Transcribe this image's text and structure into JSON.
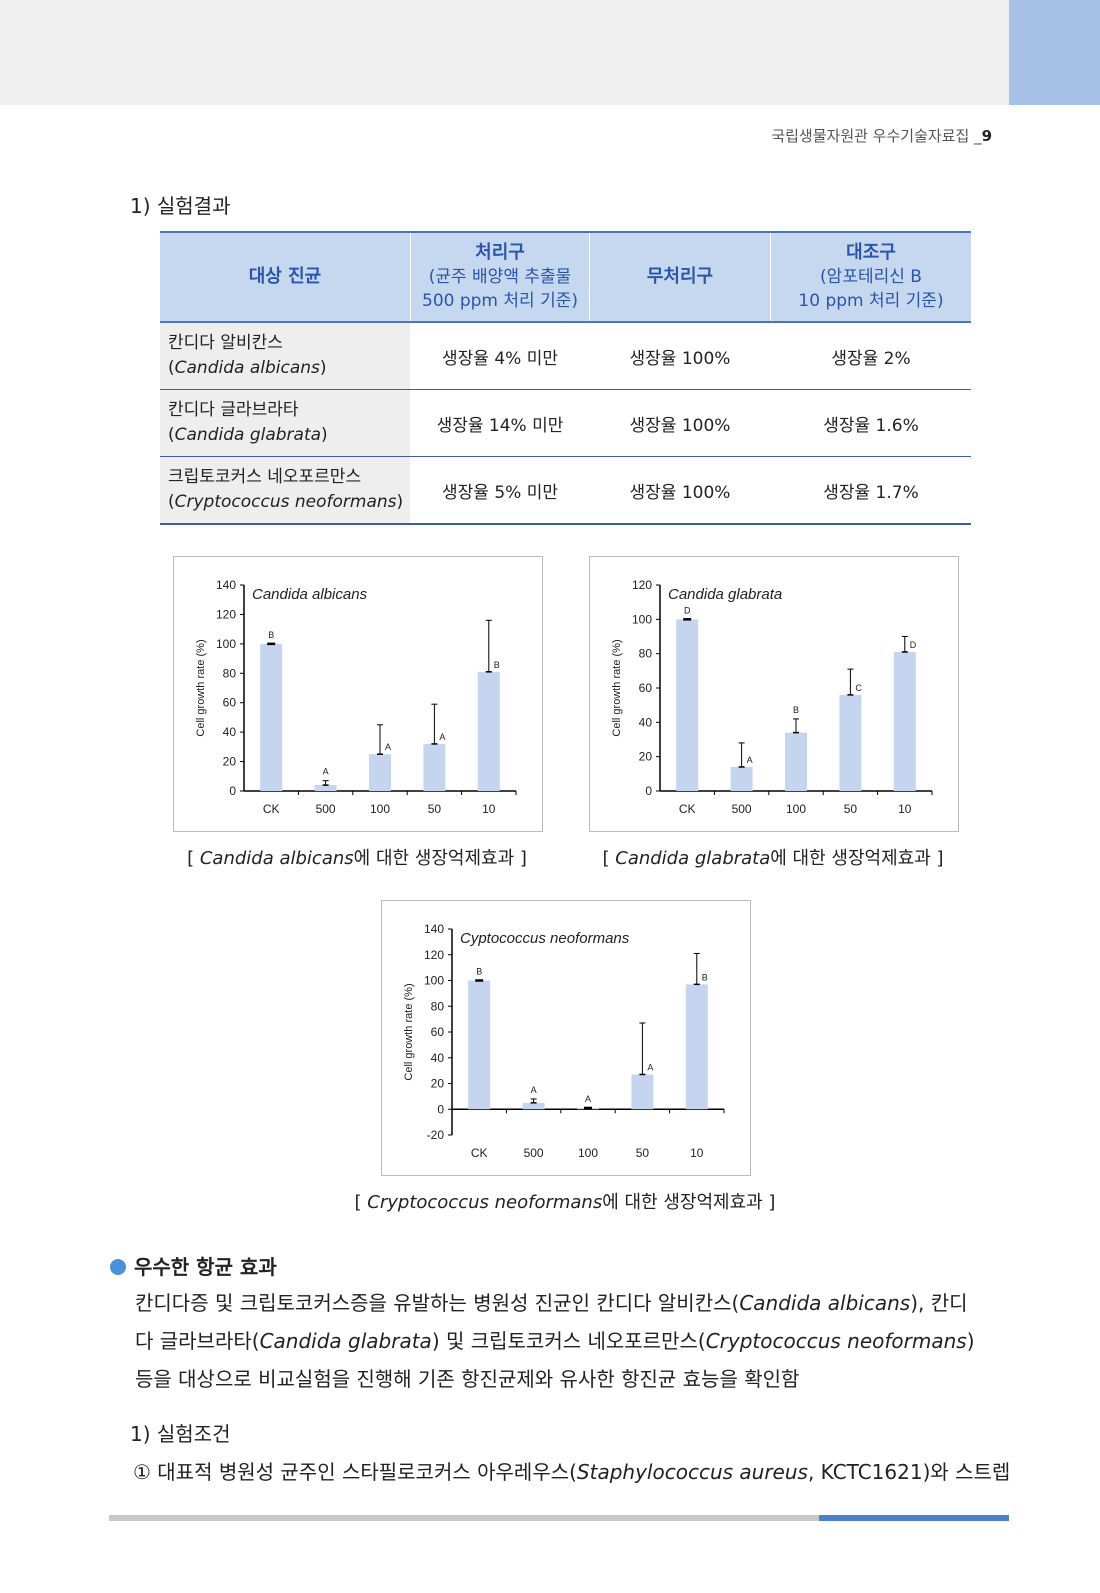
{
  "header": {
    "book_title": "국립생물자원관 우수기술자료집 _",
    "page_number": "9"
  },
  "section1_title": "1) 실험결과",
  "table": {
    "headers": [
      {
        "main": "대상 진균",
        "sub": [
          "",
          ""
        ]
      },
      {
        "main": "처리구",
        "sub": [
          "(균주 배양액 추출물",
          "500 ppm 처리 기준)"
        ]
      },
      {
        "main": "무처리구",
        "sub": [
          "",
          ""
        ]
      },
      {
        "main": "대조구",
        "sub": [
          "(암포테리신 B",
          "10 ppm 처리 기준)"
        ]
      }
    ],
    "rows": [
      {
        "name": "칸디다 알비칸스",
        "sci": "Candida albicans",
        "treated": "생장율 4% 미만",
        "untreated": "생장율 100%",
        "control": "생장율 2%"
      },
      {
        "name": "칸디다 글라브라타",
        "sci": "Candida glabrata",
        "treated": "생장율 14% 미만",
        "untreated": "생장율 100%",
        "control": "생장율 1.6%"
      },
      {
        "name": "크립토코커스 네오포르만스",
        "sci": "Cryptococcus neoformans",
        "treated": "생장율 5% 미만",
        "untreated": "생장율 100%",
        "control": "생장율 1.7%"
      }
    ]
  },
  "chart_data": [
    {
      "type": "bar",
      "title": "Candida albicans",
      "ylabel": "Cell growth rate (%)",
      "categories": [
        "CK",
        "500",
        "100",
        "50",
        "10"
      ],
      "values": [
        100,
        4,
        25,
        32,
        81
      ],
      "error_upper": [
        0,
        3,
        20,
        27,
        35
      ],
      "letters": [
        "B",
        "A",
        "A",
        "A",
        "B"
      ],
      "yticks": [
        0,
        20,
        40,
        60,
        80,
        100,
        120,
        140
      ],
      "ylim": [
        0,
        140
      ]
    },
    {
      "type": "bar",
      "title": "Candida glabrata",
      "ylabel": "Cell growth rate (%)",
      "categories": [
        "CK",
        "500",
        "100",
        "50",
        "10"
      ],
      "values": [
        100,
        14,
        34,
        56,
        81
      ],
      "error_upper": [
        0,
        14,
        8,
        15,
        9
      ],
      "letters": [
        "D",
        "A",
        "B",
        "C",
        "D"
      ],
      "yticks": [
        0,
        20,
        40,
        60,
        80,
        100,
        120
      ],
      "ylim": [
        0,
        120
      ]
    },
    {
      "type": "bar",
      "title": "Cyptococcus neoformans",
      "ylabel": "Cell growth rate (%)",
      "categories": [
        "CK",
        "500",
        "100",
        "50",
        "10"
      ],
      "values": [
        100,
        5,
        1,
        27,
        97
      ],
      "error_upper": [
        0,
        3,
        0,
        40,
        24
      ],
      "letters": [
        "B",
        "A",
        "A",
        "A",
        "B"
      ],
      "yticks": [
        -20,
        0,
        20,
        40,
        60,
        80,
        100,
        120,
        140
      ],
      "ylim": [
        -20,
        140
      ]
    }
  ],
  "captions": [
    {
      "pre": "[ ",
      "italic": "Candida albicans",
      "post": "에 대한 생장억제효과 ]"
    },
    {
      "pre": "[ ",
      "italic": "Candida glabrata",
      "post": "에 대한 생장억제효과 ]"
    },
    {
      "pre": "[ ",
      "italic": "Cryptococcus neoformans",
      "post": "에 대한 생장억제효과 ]"
    }
  ],
  "bullet_title": "우수한 항균 효과",
  "paragraph": {
    "p1": "칸디다증 및 크립토코커스증을 유발하는 병원성 진균인 칸디다 알비칸스(",
    "i1": "Candida albicans",
    "p2": "), 칸디다 글라브라타(",
    "i2": "Candida glabrata",
    "p3": ") 및 크립토코커스 네오포르만스(",
    "i3": "Cryptococcus neoformans",
    "p4": ") 등을 대상으로 비교실험을 진행해 기존 항진균제와 유사한 항진균 효능을 확인함"
  },
  "section2_title": "1) 실험조건",
  "condition": {
    "pre": "① 대표적 병원성 균주인 스타필로코커스 아우레우스(",
    "italic": "Staphylococcus aureus",
    "post": ", KCTC1621)와 스트렙"
  },
  "colors": {
    "bar": "#c5d5ef",
    "header_bg": "#c6d7f0",
    "header_text": "#2a55a8",
    "accent": "#a8c1e6",
    "bullet": "#4a90d9"
  }
}
